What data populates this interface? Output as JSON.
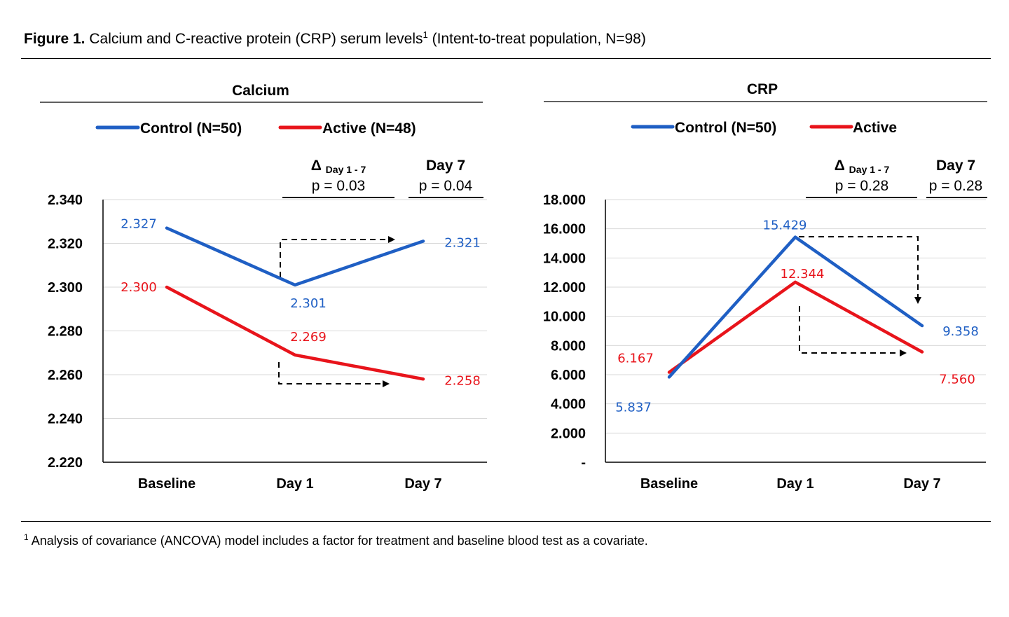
{
  "figure": {
    "title_bold": "Figure 1.",
    "title_rest": " Calcium and C-reactive protein (CRP) serum levels",
    "title_sup": "1",
    "title_tail": " (Intent-to-treat population, N=98)",
    "footnote_sup": "1",
    "footnote_text": " Analysis of covariance (ANCOVA) model includes a factor for treatment and baseline blood test as a covariate."
  },
  "colors": {
    "control": "#1f5fc4",
    "active": "#e8141b",
    "grid": "#d9d9d9",
    "axis": "#000000"
  },
  "chart_data": [
    {
      "type": "line",
      "title": "Calcium",
      "categories": [
        "Baseline",
        "Day 1",
        "Day 7"
      ],
      "series": [
        {
          "name": "Control (N=50)",
          "key": "control",
          "values": [
            2.327,
            2.301,
            2.321
          ],
          "labels": [
            "2.327",
            "2.301",
            "2.321"
          ]
        },
        {
          "name": "Active (N=48)",
          "key": "active",
          "values": [
            2.3,
            2.269,
            2.258
          ],
          "labels": [
            "2.300",
            "2.269",
            "2.258"
          ]
        }
      ],
      "ylim": [
        2.22,
        2.34
      ],
      "yticks": [
        2.34,
        2.32,
        2.3,
        2.28,
        2.26,
        2.24,
        2.22
      ],
      "ytick_labels": [
        "2.340",
        "2.320",
        "2.300",
        "2.280",
        "2.260",
        "2.240",
        "2.220"
      ],
      "grid": true,
      "legend": "top",
      "stats": [
        {
          "delta_symbol": "Δ",
          "delta_sub": "Day 1 - 7",
          "p": "p = 0.03"
        },
        {
          "heading": "Day 7",
          "p": "p = 0.04"
        }
      ]
    },
    {
      "type": "line",
      "title": "CRP",
      "categories": [
        "Baseline",
        "Day 1",
        "Day 7"
      ],
      "series": [
        {
          "name": "Control (N=50)",
          "key": "control",
          "values": [
            5.837,
            15.429,
            9.358
          ],
          "labels": [
            "5.837",
            "15.429",
            "9.358"
          ]
        },
        {
          "name": "Active",
          "key": "active",
          "values": [
            6.167,
            12.344,
            7.56
          ],
          "labels": [
            "6.167",
            "12.344",
            "7.560"
          ]
        }
      ],
      "ylim": [
        0,
        18
      ],
      "yticks": [
        18,
        16,
        14,
        12,
        10,
        8,
        6,
        4,
        2,
        0
      ],
      "ytick_labels": [
        "18.000",
        "16.000",
        "14.000",
        "12.000",
        "10.000",
        "8.000",
        "6.000",
        "4.000",
        "2.000",
        "-"
      ],
      "grid": true,
      "legend": "top",
      "stats": [
        {
          "delta_symbol": "Δ",
          "delta_sub": "Day 1 - 7",
          "p": "p = 0.28"
        },
        {
          "heading": "Day 7",
          "p": "p = 0.28"
        }
      ]
    }
  ]
}
